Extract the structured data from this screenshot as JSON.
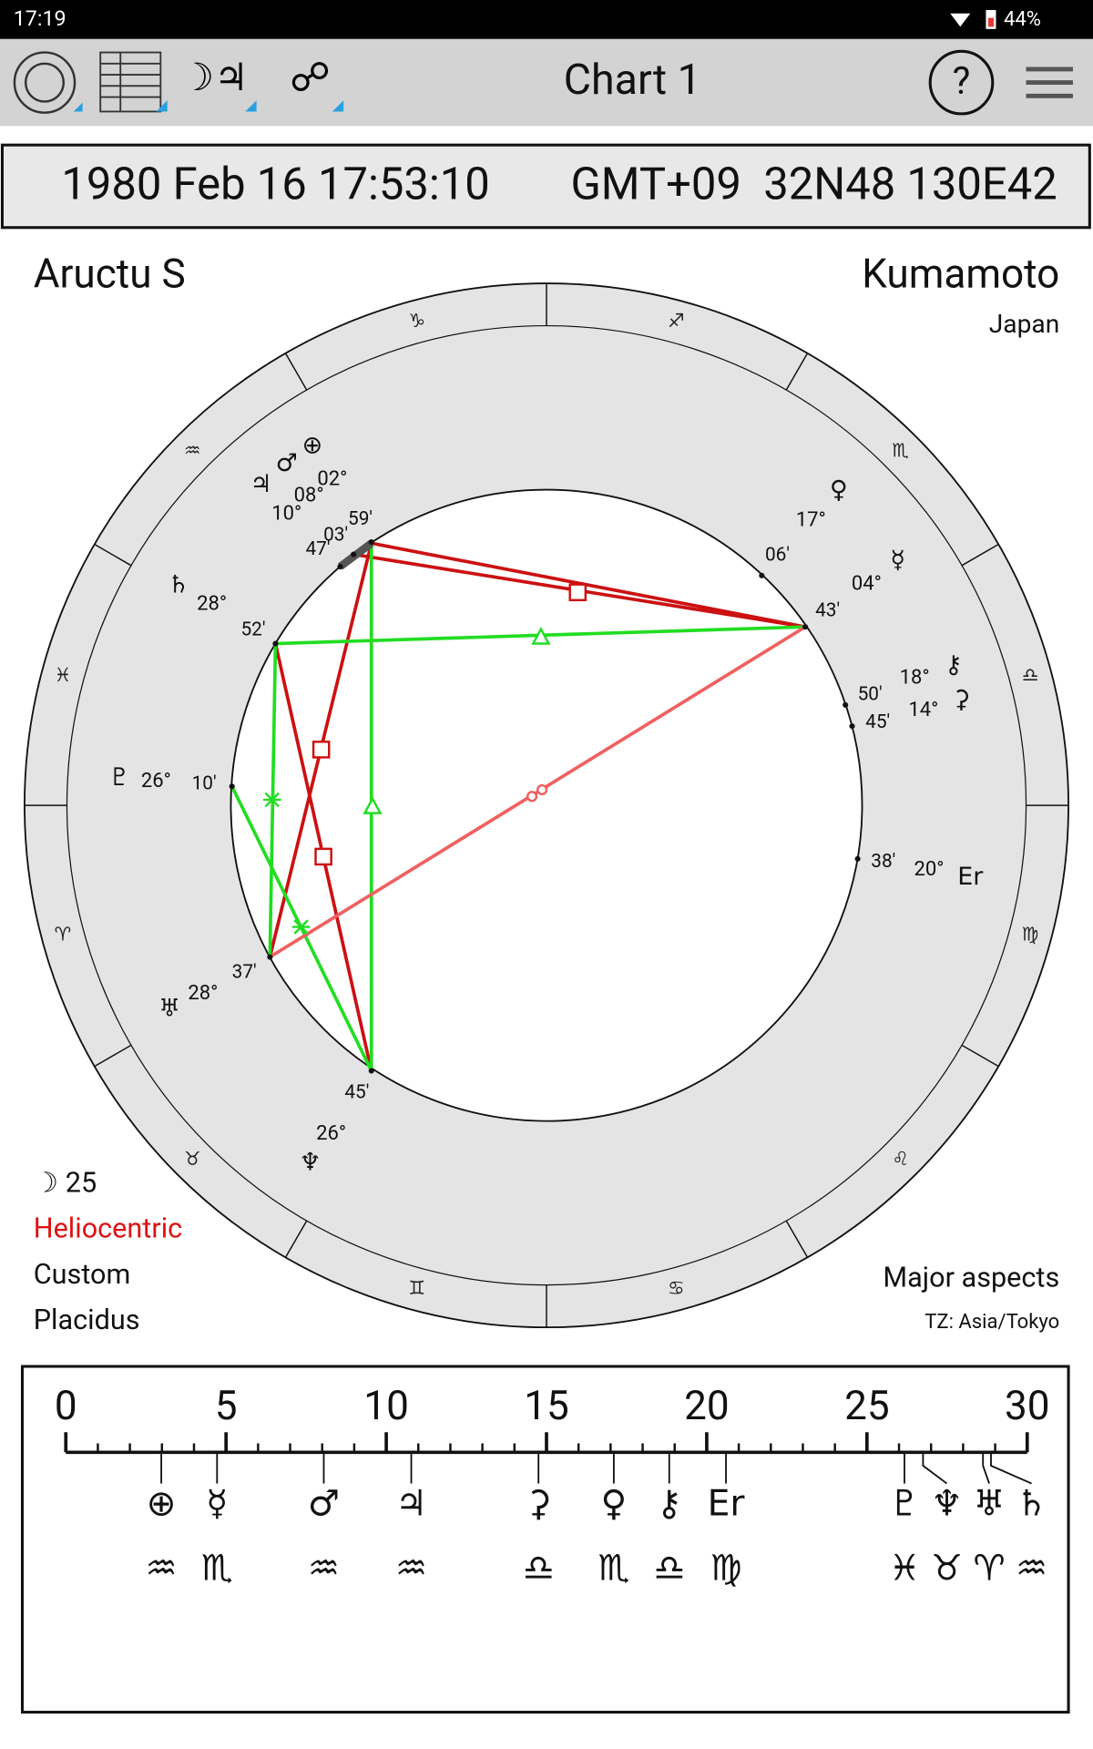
{
  "status_bar": {
    "time": "17:19",
    "battery": "44%"
  },
  "toolbar": {
    "icons": [
      "☽♃",
      "☍"
    ],
    "title": "Chart 1",
    "help": "?"
  },
  "info_bar": {
    "datetime": "1980 Feb 16 17:53:10",
    "location": "GMT+09  32N48 130E42"
  },
  "chart": {
    "name": "Aructu S",
    "city": "Kumamoto",
    "country": "Japan",
    "signs": [
      "♑",
      "♐",
      "♏",
      "♎",
      "♍",
      "♌",
      "♋",
      "♊",
      "♉",
      "♈",
      "♓",
      "♒"
    ],
    "planets": [
      {
        "glyph": "♃",
        "degree": "10°"
      },
      {
        "glyph": "♂",
        "degree": "08°"
      },
      {
        "glyph": "⊕",
        "degree": "02°"
      },
      {
        "glyph": "♄",
        "degree": "28°"
      },
      {
        "glyph": "♀",
        "degree": "17°"
      },
      {
        "glyph": "☿",
        "degree": "04°"
      },
      {
        "glyph": "⚷",
        "degree": "18°"
      },
      {
        "glyph": "⚳",
        "degree": "14°"
      },
      {
        "glyph": "♇",
        "degree": "26°"
      },
      {
        "glyph": "Er",
        "degree": "20°"
      },
      {
        "glyph": "♅",
        "degree": "28°"
      },
      {
        "glyph": "♆",
        "degree": "26°"
      }
    ],
    "cusp_minutes": [
      "59'",
      "03'",
      "47'",
      "06'",
      "52'",
      "43'",
      "50'",
      "45'",
      "10'",
      "38'",
      "37'",
      "45'"
    ],
    "footnotes_left": [
      "☽ 25",
      "Heliocentric",
      "Custom",
      "Placidus"
    ],
    "footnotes_right": [
      "Major aspects",
      "TZ: Asia/Tokyo"
    ]
  },
  "degree_scale": {
    "ticks": [
      0,
      5,
      10,
      15,
      20,
      25,
      30
    ],
    "planets": [
      {
        "glyph": "⊕",
        "sign": "♒",
        "degree": 2.98
      },
      {
        "glyph": "☿",
        "sign": "♏",
        "degree": 4.72
      },
      {
        "glyph": "♂",
        "sign": "♒",
        "degree": 8.05
      },
      {
        "glyph": "♃",
        "sign": "♒",
        "degree": 10.78
      },
      {
        "glyph": "⚳",
        "sign": "♎",
        "degree": 14.75
      },
      {
        "glyph": "♀",
        "sign": "♏",
        "degree": 17.1
      },
      {
        "glyph": "⚷",
        "sign": "♎",
        "degree": 18.83
      },
      {
        "glyph": "Er",
        "sign": "♍",
        "degree": 20.6
      },
      {
        "glyph": "♇",
        "sign": "♓",
        "degree": 26.17
      },
      {
        "glyph": "♆",
        "sign": "♉",
        "degree": 26.75
      },
      {
        "glyph": "♅",
        "sign": "♈",
        "degree": 28.62
      },
      {
        "glyph": "♄",
        "sign": "♒",
        "degree": 28.87
      }
    ]
  }
}
